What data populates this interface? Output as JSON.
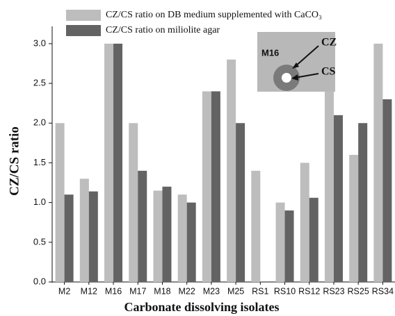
{
  "chart_data": {
    "type": "bar",
    "xlabel": "Carbonate dissolving isolates",
    "ylabel": "CZ/CS ratio",
    "categories": [
      "M2",
      "M12",
      "M16",
      "M17",
      "M18",
      "M22",
      "M23",
      "M25",
      "RS1",
      "RS10",
      "RS12",
      "RS23",
      "RS25",
      "RS34"
    ],
    "series": [
      {
        "name": "CZ/CS ratio on DB medium supplemented with CaCO₃",
        "color": "#bdbdbd",
        "values": [
          2.0,
          1.3,
          3.0,
          2.0,
          1.15,
          1.1,
          2.4,
          2.8,
          1.4,
          1.0,
          1.5,
          2.4,
          1.6,
          3.0
        ]
      },
      {
        "name": "CZ/CS ratio on miliolite agar",
        "color": "#636363",
        "values": [
          1.1,
          1.14,
          3.0,
          1.4,
          1.2,
          1.0,
          2.4,
          2.0,
          null,
          0.9,
          1.06,
          2.1,
          2.0,
          2.3
        ]
      }
    ],
    "ylim": [
      0,
      3.2
    ],
    "yticks": [
      {
        "value": 0,
        "label": "0.0"
      },
      0.5,
      {
        "value": 1,
        "label": "1.0"
      },
      1.5,
      {
        "value": 2,
        "label": "2.0"
      },
      2.5,
      {
        "value": 3,
        "label": "3.0"
      }
    ],
    "annotations": [
      "M16",
      "CZ",
      "CS"
    ]
  }
}
